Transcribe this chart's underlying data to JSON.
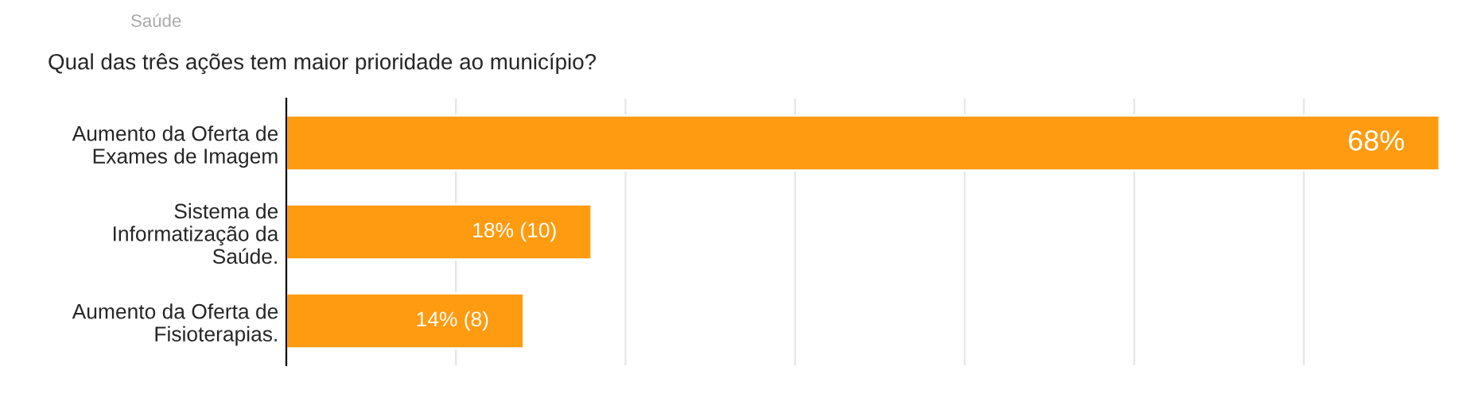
{
  "chart_data": {
    "type": "bar",
    "orientation": "horizontal",
    "xlim": [
      0,
      68
    ],
    "xticks": [
      {
        "value": 0,
        "label": null
      },
      {
        "value": 10,
        "label": null
      },
      {
        "value": 20,
        "label": null
      },
      {
        "value": 30,
        "label": null
      },
      {
        "value": 40,
        "label": null
      },
      {
        "value": 50,
        "label": null
      },
      {
        "value": 60,
        "label": null
      }
    ],
    "title": "Qual das três ações tem maior prioridade ao município?",
    "annotations": [
      "Saúde"
    ],
    "categories": [
      "Aumento da Oferta de\nExames de Imagem",
      "Sistema de\nInformatização da\nSaúde.",
      "Aumento da Oferta de\nFisioterapias."
    ],
    "values": [
      68,
      18,
      14
    ],
    "value_labels": [
      "68%",
      "18% (10)",
      "14% (8)"
    ],
    "color": "#ff9b10",
    "grid": "x"
  }
}
